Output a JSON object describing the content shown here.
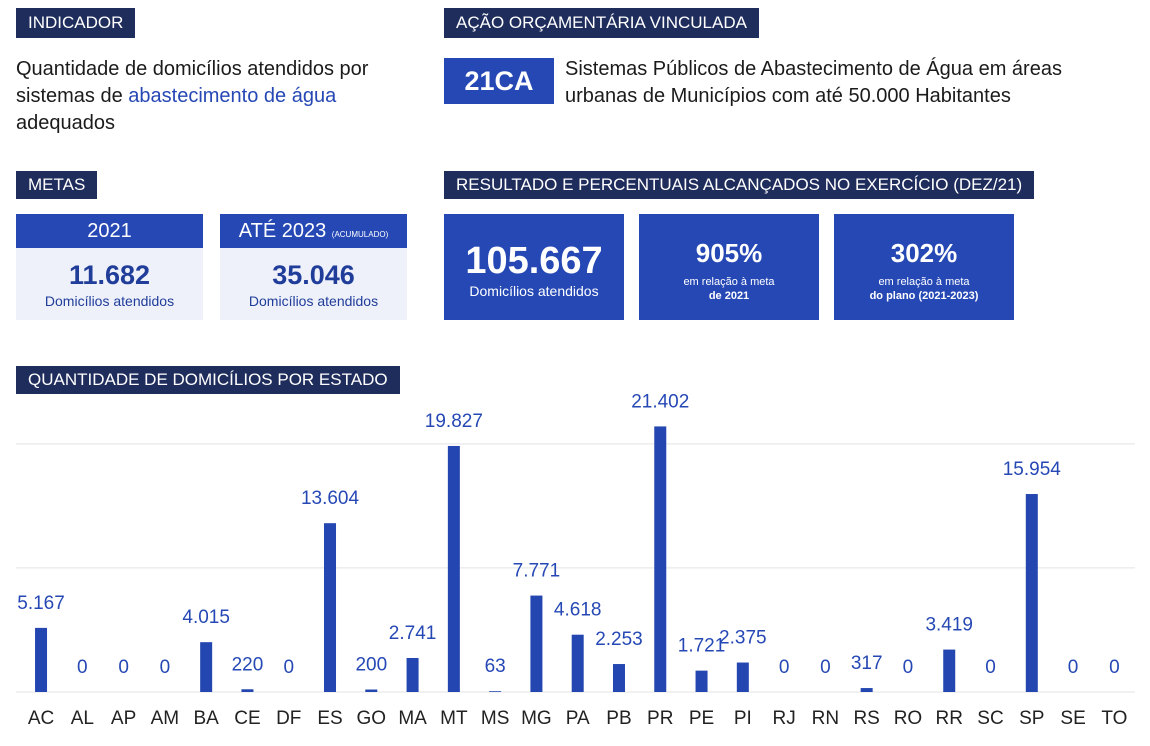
{
  "indicador": {
    "header": "INDICADOR",
    "text_before": "Quantidade de domicílios atendidos por sistemas de",
    "link": "abastecimento de água",
    "text_after": "adequados"
  },
  "acao": {
    "header": "AÇÃO ORÇAMENTÁRIA VINCULADA",
    "code": "21CA",
    "description": "Sistemas Públicos de Abastecimento de Água em áreas urbanas de Municípios com até 50.000 Habitantes"
  },
  "metas": {
    "header": "METAS",
    "cards": [
      {
        "title": "2021",
        "value": "11.682",
        "unit": "Domicílios atendidos"
      },
      {
        "title": "ATÉ 2023",
        "note": "(ACUMULADO)",
        "value": "35.046",
        "unit": "Domicílios atendidos"
      }
    ]
  },
  "resultado": {
    "header": "RESULTADO E PERCENTUAIS ALCANÇADOS NO EXERCÍCIO (DEZ/21)",
    "cards": [
      {
        "value": "105.667",
        "unit": "Domicílios atendidos"
      },
      {
        "value": "905%",
        "line1": "em relação à meta",
        "line2": "de 2021"
      },
      {
        "value": "302%",
        "line1": "em relação à meta",
        "line2": "do plano (2021-2023)"
      }
    ]
  },
  "chart_data": {
    "type": "bar",
    "title": "QUANTIDADE DE DOMICÍLIOS POR ESTADO",
    "categories": [
      "AC",
      "AL",
      "AP",
      "AM",
      "BA",
      "CE",
      "DF",
      "ES",
      "GO",
      "MA",
      "MT",
      "MS",
      "MG",
      "PA",
      "PB",
      "PR",
      "PE",
      "PI",
      "RJ",
      "RN",
      "RS",
      "RO",
      "RR",
      "SC",
      "SP",
      "SE",
      "TO"
    ],
    "values": [
      5167,
      0,
      0,
      0,
      4015,
      220,
      0,
      13604,
      200,
      2741,
      19827,
      63,
      7771,
      4618,
      2253,
      21402,
      1721,
      2375,
      0,
      0,
      317,
      0,
      3419,
      0,
      15954,
      0,
      0
    ],
    "value_labels": [
      "5.167",
      "0",
      "0",
      "0",
      "4.015",
      "220",
      "0",
      "13.604",
      "200",
      "2.741",
      "19.827",
      "63",
      "7.771",
      "4.618",
      "2.253",
      "21.402",
      "1.721",
      "2.375",
      "0",
      "0",
      "317",
      "0",
      "3.419",
      "0",
      "15.954",
      "0",
      "0"
    ],
    "color": "#2346b0",
    "ylim": [
      0,
      22000
    ],
    "yticks": [
      0,
      10000,
      20000
    ],
    "grid": true
  }
}
